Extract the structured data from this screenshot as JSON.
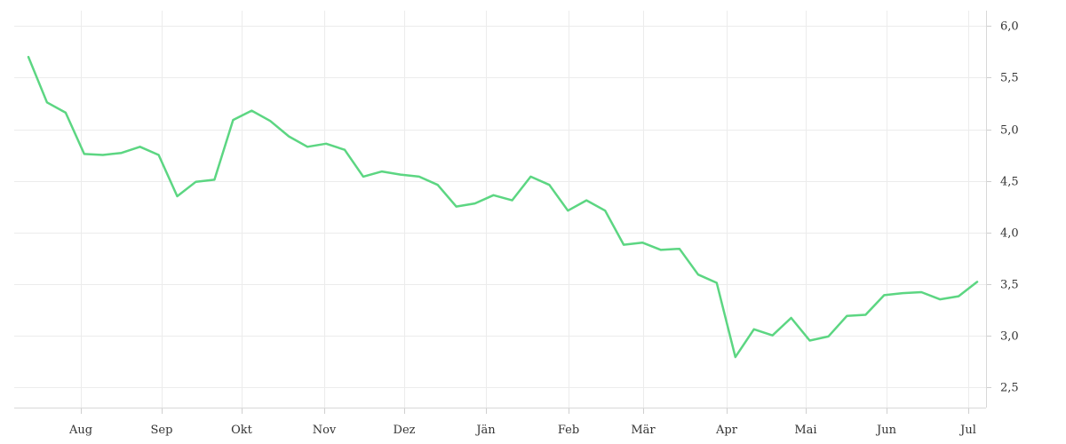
{
  "chart_data": {
    "type": "line",
    "title": "",
    "xlabel": "",
    "ylabel": "",
    "x_tick_labels": [
      "Aug",
      "Sep",
      "Okt",
      "Nov",
      "Dez",
      "Jän",
      "Feb",
      "Mär",
      "Apr",
      "Mai",
      "Jun",
      "Jul"
    ],
    "y_tick_labels": [
      "2,5",
      "3,0",
      "3,5",
      "4,0",
      "4,5",
      "5,0",
      "5,5",
      "6,0"
    ],
    "y_ticks": [
      2.5,
      3.0,
      3.5,
      4.0,
      4.5,
      5.0,
      5.5,
      6.0
    ],
    "ylim": [
      2.3,
      6.15
    ],
    "grid": true,
    "y_axis_position": "right",
    "colors": {
      "series": "#5cd682"
    },
    "series": [
      {
        "values": [
          5.7,
          5.26,
          5.16,
          4.76,
          4.75,
          4.77,
          4.83,
          4.75,
          4.35,
          4.49,
          4.51,
          5.09,
          5.18,
          5.08,
          4.93,
          4.83,
          4.86,
          4.8,
          4.54,
          4.59,
          4.56,
          4.54,
          4.46,
          4.25,
          4.28,
          4.36,
          4.31,
          4.54,
          4.46,
          4.21,
          4.31,
          4.21,
          3.88,
          3.9,
          3.83,
          3.84,
          3.59,
          3.51,
          2.79,
          3.06,
          3.0,
          3.17,
          2.95,
          2.99,
          3.19,
          3.2,
          3.39,
          3.41,
          3.42,
          3.35,
          3.38,
          3.52
        ]
      }
    ]
  }
}
